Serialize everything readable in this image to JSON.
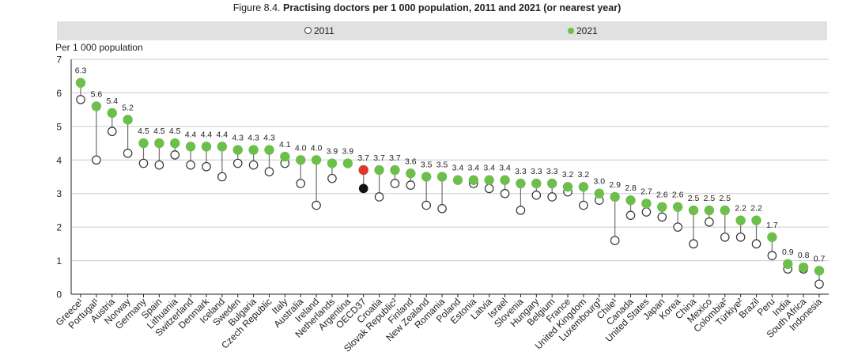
{
  "figure": {
    "prefix": "Figure 8.4. ",
    "title": "Practising doctors per 1 000 population, 2011 and 2021 (or nearest year)"
  },
  "legend": {
    "item_2011": "2011",
    "item_2021": "2021"
  },
  "colors": {
    "series_2021": "#6dbf4b",
    "series_2011": "#ffffff",
    "oecd_2021": "#d93a2b",
    "oecd_2011": "#111111",
    "connector": "#6e6e6e",
    "grid": "#cccccc"
  },
  "chart_data": {
    "type": "scatter",
    "ylabel": "Per 1 000 population",
    "ylim": [
      0,
      7
    ],
    "yticks": [
      "0",
      "1",
      "2",
      "3",
      "4",
      "5",
      "6",
      "7"
    ],
    "categories": [
      "Greece¹",
      "Portugal¹",
      "Austria",
      "Norway",
      "Germany",
      "Spain",
      "Lithuania",
      "Switzerland",
      "Denmark",
      "Iceland",
      "Sweden",
      "Bulgaria",
      "Czech Republic",
      "Italy",
      "Australia",
      "Ireland",
      "Netherlands",
      "Argentina",
      "OECD37",
      "Croatia",
      "Slovak Republic²",
      "Finland",
      "New Zealand",
      "Romania",
      "Poland",
      "Estonia",
      "Latvia",
      "Israel",
      "Slovenia",
      "Hungary",
      "Belgium",
      "France",
      "United Kingdom",
      "Luxembourg³",
      "Chile¹",
      "Canada",
      "United States",
      "Japan",
      "Korea",
      "China",
      "Mexico",
      "Colombia²",
      "Türkiye²",
      "Brazil",
      "Peru",
      "India",
      "South Africa",
      "Indonesia"
    ],
    "series": [
      {
        "name": "2011",
        "values": [
          5.8,
          4.0,
          4.85,
          4.2,
          3.9,
          3.85,
          4.15,
          3.85,
          3.8,
          3.5,
          3.9,
          3.85,
          3.65,
          3.9,
          3.3,
          2.65,
          3.45,
          null,
          3.15,
          2.9,
          3.3,
          3.25,
          2.65,
          2.55,
          null,
          3.3,
          3.15,
          3.0,
          2.5,
          2.95,
          2.9,
          3.05,
          2.65,
          2.8,
          1.6,
          2.35,
          2.45,
          2.3,
          2.0,
          1.5,
          2.15,
          1.7,
          1.7,
          1.5,
          1.15,
          0.75,
          0.75,
          0.3
        ]
      },
      {
        "name": "2021",
        "values": [
          6.3,
          5.6,
          5.4,
          5.2,
          4.5,
          4.5,
          4.5,
          4.4,
          4.4,
          4.4,
          4.3,
          4.3,
          4.3,
          4.1,
          4.0,
          4.0,
          3.9,
          3.9,
          3.7,
          3.7,
          3.7,
          3.6,
          3.5,
          3.5,
          3.4,
          3.4,
          3.4,
          3.4,
          3.3,
          3.3,
          3.3,
          3.2,
          3.2,
          3.0,
          2.9,
          2.8,
          2.7,
          2.6,
          2.6,
          2.5,
          2.5,
          2.5,
          2.2,
          2.2,
          1.7,
          0.9,
          0.8,
          0.7
        ]
      }
    ],
    "data_labels": [
      "6.3",
      "5.6",
      "5.4",
      "5.2",
      "4.5",
      "4.5",
      "4.5",
      "4.4",
      "4.4",
      "4.4",
      "4.3",
      "4.3",
      "4.3",
      "4.1",
      "4.0",
      "4.0",
      "3.9",
      "3.9",
      "3.7",
      "3.7",
      "3.7",
      "3.6",
      "3.5",
      "3.5",
      "3.4",
      "3.4",
      "3.4",
      "3.4",
      "3.3",
      "3.3",
      "3.3",
      "3.2",
      "3.2",
      "3.0",
      "2.9",
      "2.8",
      "2.7",
      "2.6",
      "2.6",
      "2.5",
      "2.5",
      "2.5",
      "2.2",
      "2.2",
      "1.7",
      "0.9",
      "0.8",
      "0.7"
    ],
    "highlight_category": "OECD37",
    "grid": "horizontal",
    "legend_position": "top"
  }
}
